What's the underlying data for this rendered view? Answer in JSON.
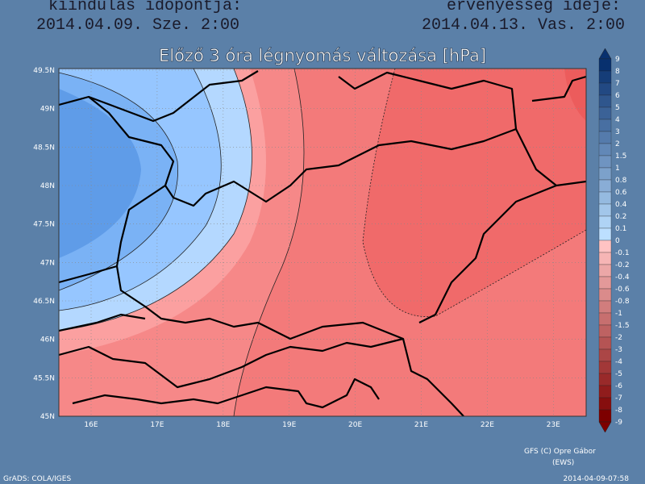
{
  "header": {
    "left_label": "kiindulás időpontja:",
    "left_value": "2014.04.09. Sze. 2:00",
    "right_label": "érvényesség ideje:",
    "right_value": "2014.04.13. Vas. 2:00"
  },
  "map": {
    "title": "Előző 3 óra légnyomás változása [hPa]",
    "lat_labels": [
      "49.5N",
      "49N",
      "48.5N",
      "48N",
      "47.5N",
      "47N",
      "46.5N",
      "46N",
      "45.5N",
      "45N"
    ],
    "lon_labels": [
      "16E",
      "17E",
      "18E",
      "19E",
      "20E",
      "21E",
      "22E",
      "23E"
    ]
  },
  "colorbar": {
    "labels": [
      "9",
      "8",
      "7",
      "6",
      "5",
      "4",
      "3",
      "2",
      "1.5",
      "1",
      "0.8",
      "0.6",
      "0.4",
      "0.2",
      "0.1",
      "0",
      "-0.1",
      "-0.2",
      "-0.4",
      "-0.6",
      "-0.8",
      "-1",
      "-1.5",
      "-2",
      "-3",
      "-4",
      "-5",
      "-6",
      "-7",
      "-8",
      "-9"
    ]
  },
  "footer": {
    "credit": "GFS (C) Opre Gábor",
    "source": "(EWS)",
    "software": "GrADS: COLA/IGES",
    "timestamp": "2014-04-09-07:58"
  }
}
